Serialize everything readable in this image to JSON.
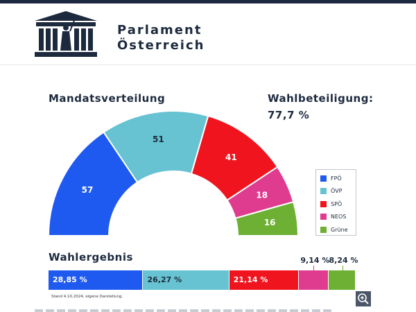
{
  "site": {
    "brand_line1": "Parlament",
    "brand_line2": "Österreich",
    "logo_icon": "parliament-building-icon"
  },
  "mandates": {
    "heading": "Mandatsverteilung"
  },
  "turnout": {
    "heading": "Wahlbeteiligung:",
    "value": "77,7 %"
  },
  "results": {
    "heading": "Wahlergebnis",
    "footnote": "Stand 4.10.2024, eigene Darstellung."
  },
  "zoom": {
    "icon": "zoom-in-icon"
  },
  "chart_data": [
    {
      "type": "pie",
      "variant": "half-donut (parliament seats)",
      "title": "Mandatsverteilung",
      "categories": [
        "FPÖ",
        "ÖVP",
        "SPÖ",
        "NEOS",
        "Grüne"
      ],
      "values": [
        57,
        51,
        41,
        18,
        16
      ],
      "colors": [
        "#1e5af0",
        "#67c3d1",
        "#f0141e",
        "#e03c8f",
        "#6db034"
      ],
      "legend": [
        "FPÖ",
        "ÖVP",
        "SPÖ",
        "NEOS",
        "Grüne"
      ],
      "legend_position": "right"
    },
    {
      "type": "bar",
      "variant": "single stacked horizontal bar",
      "title": "Wahlergebnis",
      "categories": [
        "FPÖ",
        "ÖVP",
        "SPÖ",
        "NEOS",
        "Grüne"
      ],
      "values": [
        28.85,
        26.27,
        21.14,
        9.14,
        8.24
      ],
      "labels": [
        "28,85 %",
        "26,27 %",
        "21,14 %",
        "9,14 %",
        "8,24 %"
      ],
      "colors": [
        "#1e5af0",
        "#67c3d1",
        "#f0141e",
        "#e03c8f",
        "#6db034"
      ]
    }
  ]
}
